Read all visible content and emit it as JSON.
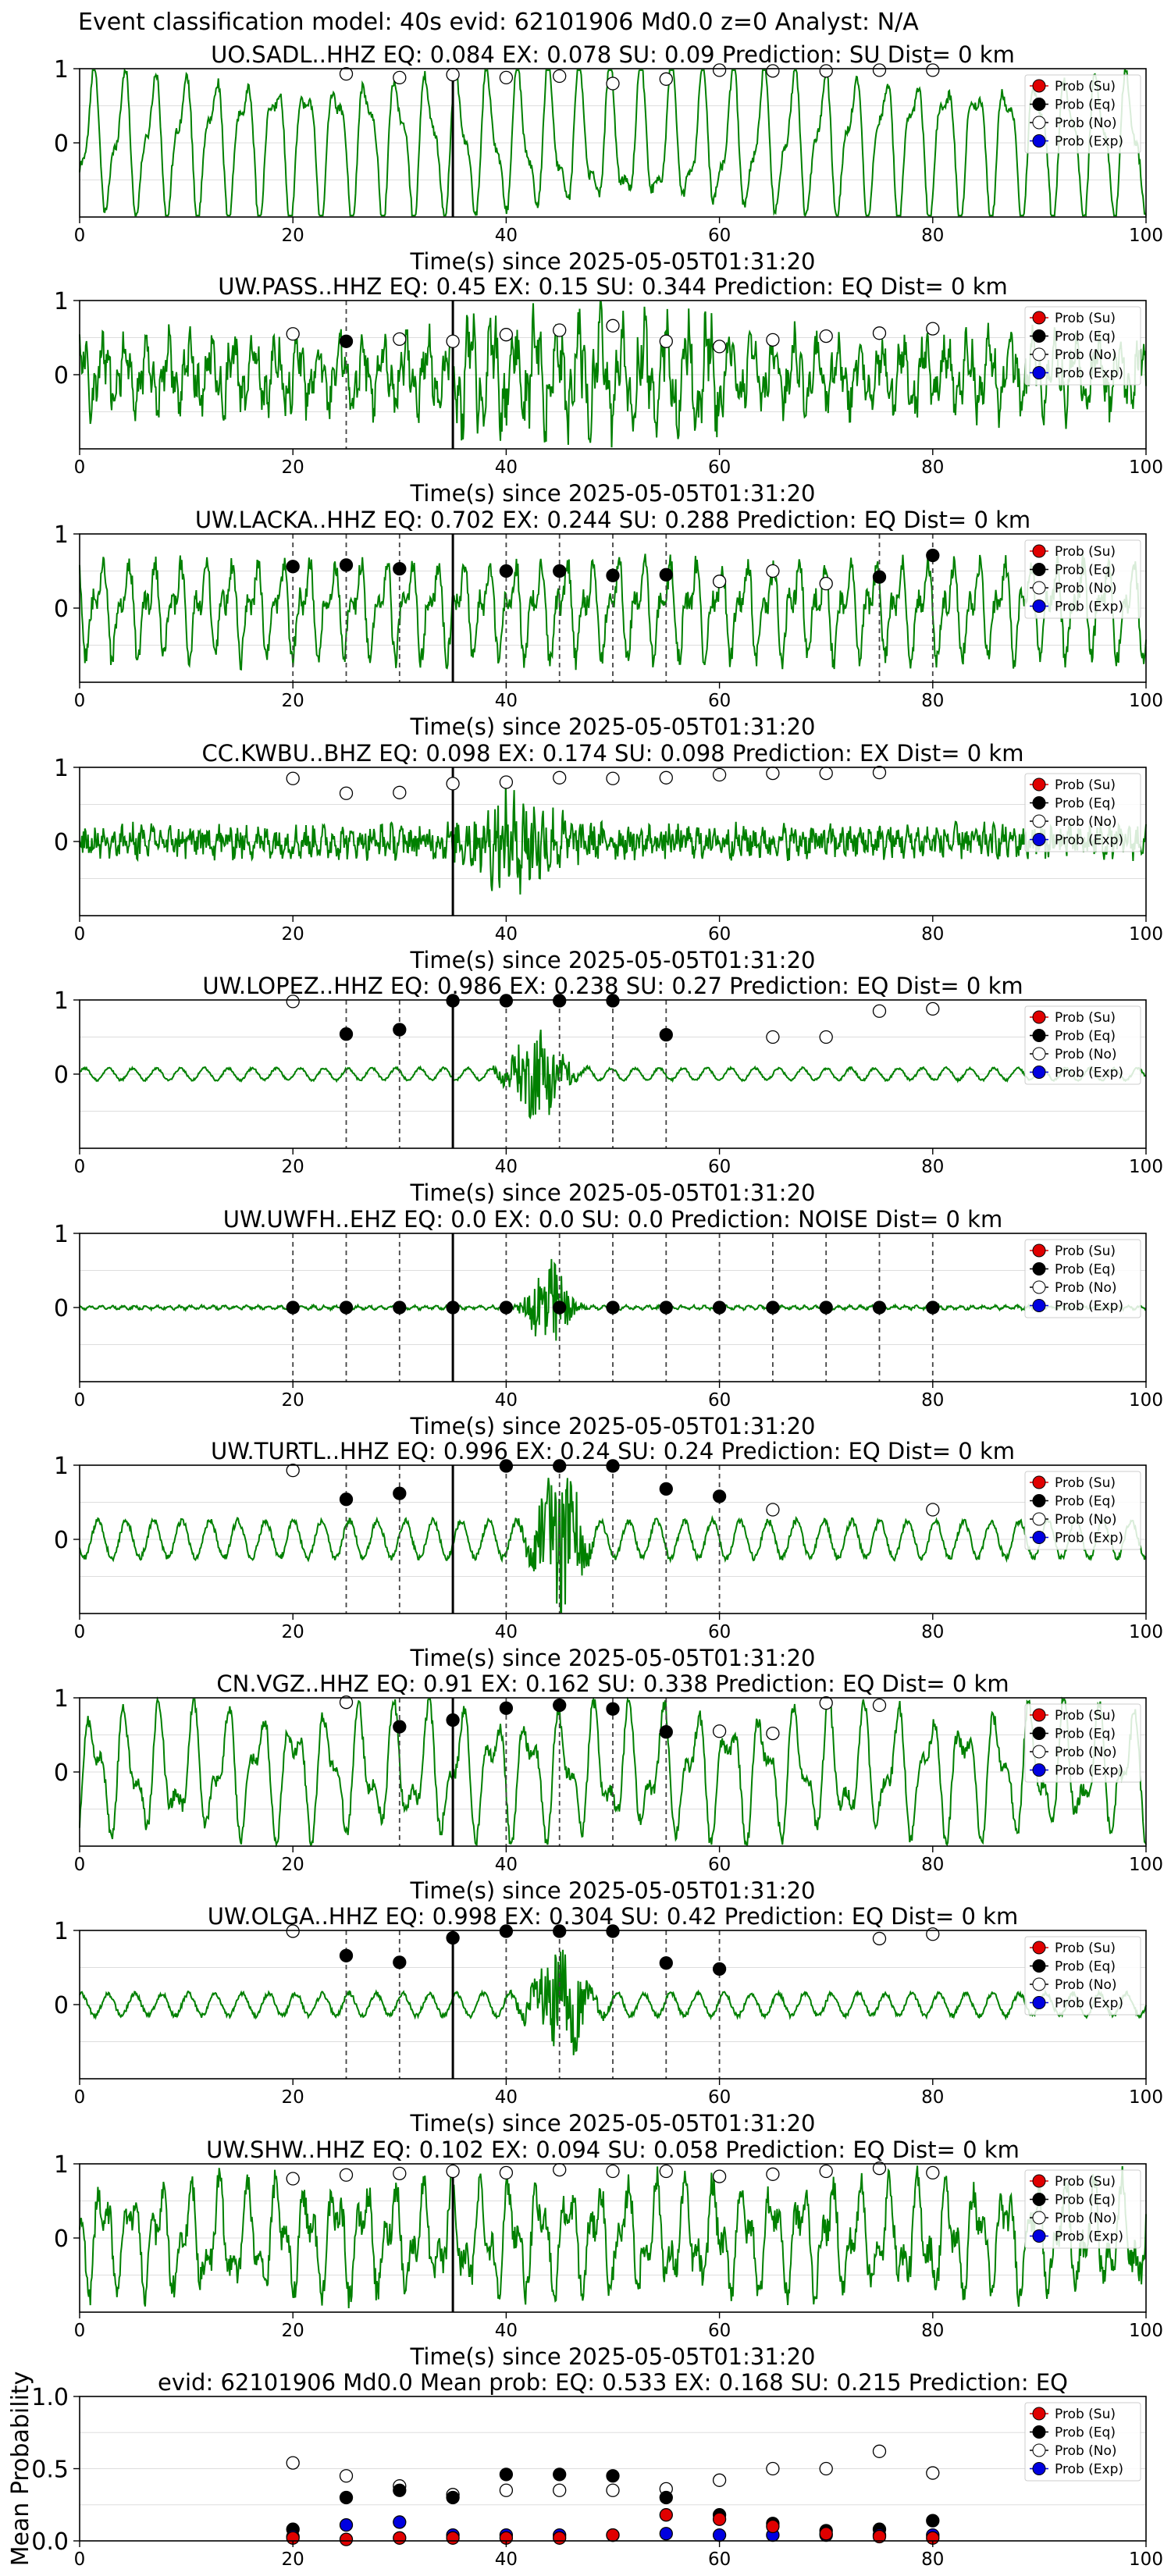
{
  "suptitle": "Event classification model: 40s evid: 62101906 Md0.0 z=0 Analyst: N/A",
  "legend": [
    "Prob (Su)",
    "Prob (Eq)",
    "Prob (No)",
    "Prob (Exp)"
  ],
  "colors": {
    "su": "#e00000",
    "eq": "#000000",
    "no": "#ffffff",
    "exp": "#0000e0",
    "trace": "#008000",
    "grid": "#dddddd",
    "dashed": "#444444"
  },
  "chart_data": [
    {
      "type": "line",
      "title": "UO.SADL..HHZ   EQ: 0.084  EX: 0.078  SU: 0.09   Prediction: SU    Dist= 0 km",
      "xlabel": "Time(s) since 2025-05-05T01:31:20",
      "xlim": [
        0,
        100
      ],
      "ylim": [
        -1,
        1
      ],
      "xticks": [
        "0",
        "20",
        "40",
        "60",
        "80",
        "100"
      ],
      "yticks": [
        "0",
        "1"
      ],
      "waveform": "low-frequency oscillation, amplitude near full scale",
      "pick_time": 35,
      "eq_times": [],
      "eq_points": [],
      "noise_points": [
        [
          25,
          0.93
        ],
        [
          30,
          0.88
        ],
        [
          35,
          0.92
        ],
        [
          40,
          0.88
        ],
        [
          45,
          0.9
        ],
        [
          50,
          0.8
        ],
        [
          55,
          0.86
        ],
        [
          60,
          0.98
        ],
        [
          65,
          0.97
        ],
        [
          70,
          0.97
        ],
        [
          75,
          0.98
        ],
        [
          80,
          0.98
        ]
      ]
    },
    {
      "type": "line",
      "title": "UW.PASS..HHZ   EQ: 0.45  EX: 0.15  SU: 0.344   Prediction: EQ    Dist= 0 km",
      "xlabel": "Time(s) since 2025-05-05T01:31:20",
      "xlim": [
        0,
        100
      ],
      "ylim": [
        -1,
        1
      ],
      "xticks": [
        "0",
        "20",
        "40",
        "60",
        "80",
        "100"
      ],
      "yticks": [
        "0",
        "1"
      ],
      "waveform": "broadband noise with stronger bursts after pick",
      "pick_time": 35,
      "eq_times": [
        25
      ],
      "eq_points": [
        [
          25,
          0.45
        ]
      ],
      "noise_points": [
        [
          20,
          0.55
        ],
        [
          30,
          0.48
        ],
        [
          35,
          0.45
        ],
        [
          40,
          0.54
        ],
        [
          45,
          0.6
        ],
        [
          50,
          0.66
        ],
        [
          55,
          0.45
        ],
        [
          60,
          0.38
        ],
        [
          65,
          0.47
        ],
        [
          70,
          0.52
        ],
        [
          75,
          0.56
        ],
        [
          80,
          0.62
        ]
      ]
    },
    {
      "type": "line",
      "title": "UW.LACKA..HHZ   EQ: 0.702  EX: 0.244  SU: 0.288   Prediction: EQ    Dist= 0 km",
      "xlabel": "Time(s) since 2025-05-05T01:31:20",
      "xlim": [
        0,
        100
      ],
      "ylim": [
        -1,
        1
      ],
      "xticks": [
        "0",
        "20",
        "40",
        "60",
        "80",
        "100"
      ],
      "yticks": [
        "0",
        "1"
      ],
      "waveform": "mixed oscillation with noisy segments",
      "pick_time": 35,
      "eq_times": [
        20,
        25,
        30,
        40,
        45,
        50,
        55,
        75,
        80
      ],
      "eq_points": [
        [
          20,
          0.56
        ],
        [
          25,
          0.58
        ],
        [
          30,
          0.53
        ],
        [
          40,
          0.5
        ],
        [
          45,
          0.5
        ],
        [
          50,
          0.44
        ],
        [
          55,
          0.45
        ],
        [
          75,
          0.42
        ],
        [
          80,
          0.71
        ]
      ],
      "noise_points": [
        [
          60,
          0.36
        ],
        [
          65,
          0.5
        ],
        [
          70,
          0.33
        ]
      ]
    },
    {
      "type": "line",
      "title": "CC.KWBU..BHZ   EQ: 0.098  EX: 0.174  SU: 0.098   Prediction: EX    Dist= 0 km",
      "xlabel": "Time(s) since 2025-05-05T01:31:20",
      "xlim": [
        0,
        100
      ],
      "ylim": [
        -1,
        1
      ],
      "xticks": [
        "0",
        "20",
        "40",
        "60",
        "80",
        "100"
      ],
      "yticks": [
        "0",
        "1"
      ],
      "waveform": "dense high-frequency noise, larger burst near 40 s",
      "pick_time": 35,
      "eq_times": [],
      "eq_points": [],
      "noise_points": [
        [
          20,
          0.85
        ],
        [
          25,
          0.65
        ],
        [
          30,
          0.66
        ],
        [
          35,
          0.78
        ],
        [
          40,
          0.8
        ],
        [
          45,
          0.86
        ],
        [
          50,
          0.85
        ],
        [
          55,
          0.86
        ],
        [
          60,
          0.9
        ],
        [
          65,
          0.92
        ],
        [
          70,
          0.92
        ],
        [
          75,
          0.93
        ]
      ]
    },
    {
      "type": "line",
      "title": "UW.LOPEZ..HHZ   EQ: 0.986  EX: 0.238  SU: 0.27   Prediction: EQ    Dist= 0 km",
      "xlabel": "Time(s) since 2025-05-05T01:31:20",
      "xlim": [
        0,
        100
      ],
      "ylim": [
        -1,
        1
      ],
      "xticks": [
        "0",
        "20",
        "40",
        "60",
        "80",
        "100"
      ],
      "yticks": [
        "0",
        "1"
      ],
      "waveform": "small-amplitude oscillation, event burst near 41-45 s",
      "pick_time": 35,
      "eq_times": [
        25,
        30,
        40,
        45,
        50,
        55
      ],
      "eq_points": [
        [
          25,
          0.54
        ],
        [
          30,
          0.6
        ],
        [
          35,
          0.99
        ],
        [
          40,
          0.99
        ],
        [
          45,
          0.99
        ],
        [
          50,
          0.99
        ],
        [
          55,
          0.53
        ]
      ],
      "noise_points": [
        [
          20,
          0.98
        ],
        [
          65,
          0.5
        ],
        [
          70,
          0.5
        ],
        [
          75,
          0.85
        ],
        [
          80,
          0.88
        ]
      ]
    },
    {
      "type": "line",
      "title": "UW.UWFH..EHZ   EQ: 0.0  EX: 0.0  SU: 0.0   Prediction: NOISE    Dist= 0 km",
      "xlabel": "Time(s) since 2025-05-05T01:31:20",
      "xlim": [
        0,
        100
      ],
      "ylim": [
        -1,
        1
      ],
      "xticks": [
        "0",
        "20",
        "40",
        "60",
        "80",
        "100"
      ],
      "yticks": [
        "0",
        "1"
      ],
      "waveform": "near-flat trace, small burst near 44 s",
      "pick_time": 35,
      "eq_times": [
        20,
        25,
        30,
        40,
        45,
        50,
        55,
        60,
        65,
        70,
        75,
        80
      ],
      "eq_points": [
        [
          20,
          0
        ],
        [
          25,
          0
        ],
        [
          30,
          0
        ],
        [
          35,
          0
        ],
        [
          40,
          0
        ],
        [
          45,
          0
        ],
        [
          50,
          0
        ],
        [
          55,
          0
        ],
        [
          60,
          0
        ],
        [
          65,
          0
        ],
        [
          70,
          0
        ],
        [
          75,
          0
        ],
        [
          80,
          0
        ]
      ],
      "noise_points": []
    },
    {
      "type": "line",
      "title": "UW.TURTL..HHZ   EQ: 0.996  EX: 0.24  SU: 0.24   Prediction: EQ    Dist= 0 km",
      "xlabel": "Time(s) since 2025-05-05T01:31:20",
      "xlim": [
        0,
        100
      ],
      "ylim": [
        -1,
        1
      ],
      "xticks": [
        "0",
        "20",
        "40",
        "60",
        "80",
        "100"
      ],
      "yticks": [
        "0",
        "1"
      ],
      "waveform": "moderate oscillation with event burst near 43-47 s",
      "pick_time": 35,
      "eq_times": [
        25,
        30,
        40,
        45,
        50,
        55,
        60
      ],
      "eq_points": [
        [
          25,
          0.54
        ],
        [
          30,
          0.62
        ],
        [
          40,
          0.99
        ],
        [
          45,
          0.99
        ],
        [
          50,
          0.99
        ],
        [
          55,
          0.68
        ],
        [
          60,
          0.58
        ]
      ],
      "noise_points": [
        [
          20,
          0.93
        ],
        [
          65,
          0.4
        ],
        [
          80,
          0.4
        ]
      ]
    },
    {
      "type": "line",
      "title": "CN.VGZ..HHZ   EQ: 0.91  EX: 0.162  SU: 0.338   Prediction: EQ    Dist= 0 km",
      "xlabel": "Time(s) since 2025-05-05T01:31:20",
      "xlim": [
        0,
        100
      ],
      "ylim": [
        -1,
        1
      ],
      "xticks": [
        "0",
        "20",
        "40",
        "60",
        "80",
        "100"
      ],
      "yticks": [
        "0",
        "1"
      ],
      "waveform": "large irregular oscillation",
      "pick_time": 35,
      "eq_times": [
        30,
        40,
        45,
        50,
        55
      ],
      "eq_points": [
        [
          30,
          0.61
        ],
        [
          35,
          0.7
        ],
        [
          40,
          0.86
        ],
        [
          45,
          0.9
        ],
        [
          50,
          0.85
        ],
        [
          55,
          0.54
        ]
      ],
      "noise_points": [
        [
          25,
          0.94
        ],
        [
          60,
          0.55
        ],
        [
          65,
          0.52
        ],
        [
          70,
          0.93
        ],
        [
          75,
          0.9
        ]
      ]
    },
    {
      "type": "line",
      "title": "UW.OLGA..HHZ   EQ: 0.998  EX: 0.304  SU: 0.42   Prediction: EQ    Dist= 0 km",
      "xlabel": "Time(s) since 2025-05-05T01:31:20",
      "xlim": [
        0,
        100
      ],
      "ylim": [
        -1,
        1
      ],
      "xticks": [
        "0",
        "20",
        "40",
        "60",
        "80",
        "100"
      ],
      "yticks": [
        "0",
        "1"
      ],
      "waveform": "small oscillation with event burst near 44-47 s",
      "pick_time": 35,
      "eq_times": [
        25,
        30,
        40,
        45,
        50,
        55,
        60
      ],
      "eq_points": [
        [
          25,
          0.66
        ],
        [
          30,
          0.57
        ],
        [
          35,
          0.9
        ],
        [
          40,
          0.99
        ],
        [
          45,
          0.99
        ],
        [
          50,
          0.99
        ],
        [
          55,
          0.56
        ],
        [
          60,
          0.48
        ]
      ],
      "noise_points": [
        [
          20,
          0.99
        ],
        [
          75,
          0.89
        ],
        [
          80,
          0.95
        ]
      ]
    },
    {
      "type": "line",
      "title": "UW.SHW..HHZ   EQ: 0.102  EX: 0.094  SU: 0.058   Prediction: EQ    Dist= 0 km",
      "xlabel": "Time(s) since 2025-05-05T01:31:20",
      "xlim": [
        0,
        100
      ],
      "ylim": [
        -1,
        1
      ],
      "xticks": [
        "0",
        "20",
        "40",
        "60",
        "80",
        "100"
      ],
      "yticks": [
        "0",
        "1"
      ],
      "waveform": "noisy irregular oscillation",
      "pick_time": 35,
      "eq_times": [],
      "eq_points": [],
      "noise_points": [
        [
          20,
          0.8
        ],
        [
          25,
          0.85
        ],
        [
          30,
          0.87
        ],
        [
          35,
          0.9
        ],
        [
          40,
          0.88
        ],
        [
          45,
          0.92
        ],
        [
          50,
          0.9
        ],
        [
          55,
          0.9
        ],
        [
          60,
          0.83
        ],
        [
          65,
          0.86
        ],
        [
          70,
          0.9
        ],
        [
          75,
          0.94
        ],
        [
          80,
          0.88
        ]
      ]
    },
    {
      "type": "scatter",
      "title": "evid: 62101906  Md0.0   Mean prob:   EQ: 0.533  EX: 0.168  SU: 0.215   Prediction: EQ",
      "xlabel": "",
      "ylabel": "Mean Probability",
      "xlim": [
        0,
        100
      ],
      "ylim": [
        0,
        1
      ],
      "xticks": [
        "0",
        "20",
        "40",
        "60",
        "80",
        "100"
      ],
      "yticks": [
        "0.0",
        "0.5",
        "1.0"
      ],
      "series": [
        {
          "name": "Prob (Su)",
          "x": [
            20,
            25,
            30,
            35,
            40,
            45,
            50,
            55,
            60,
            65,
            70,
            75,
            80
          ],
          "y": [
            0.02,
            0.01,
            0.02,
            0.02,
            0.02,
            0.02,
            0.04,
            0.18,
            0.15,
            0.1,
            0.05,
            0.03,
            0.02
          ]
        },
        {
          "name": "Prob (Eq)",
          "x": [
            20,
            25,
            30,
            35,
            40,
            45,
            50,
            55,
            60,
            65,
            70,
            75,
            80
          ],
          "y": [
            0.08,
            0.3,
            0.35,
            0.3,
            0.46,
            0.46,
            0.45,
            0.3,
            0.18,
            0.12,
            0.07,
            0.08,
            0.14
          ]
        },
        {
          "name": "Prob (No)",
          "x": [
            20,
            25,
            30,
            35,
            40,
            45,
            50,
            55,
            60,
            65,
            70,
            75,
            80
          ],
          "y": [
            0.54,
            0.45,
            0.38,
            0.32,
            0.35,
            0.35,
            0.35,
            0.36,
            0.42,
            0.5,
            0.5,
            0.62,
            0.47
          ]
        },
        {
          "name": "Prob (Exp)",
          "x": [
            20,
            25,
            30,
            35,
            40,
            45,
            50,
            55,
            60,
            65,
            70,
            75,
            80
          ],
          "y": [
            0.03,
            0.11,
            0.13,
            0.04,
            0.04,
            0.04,
            0.04,
            0.05,
            0.04,
            0.04,
            0.04,
            0.04,
            0.04
          ]
        }
      ]
    }
  ]
}
